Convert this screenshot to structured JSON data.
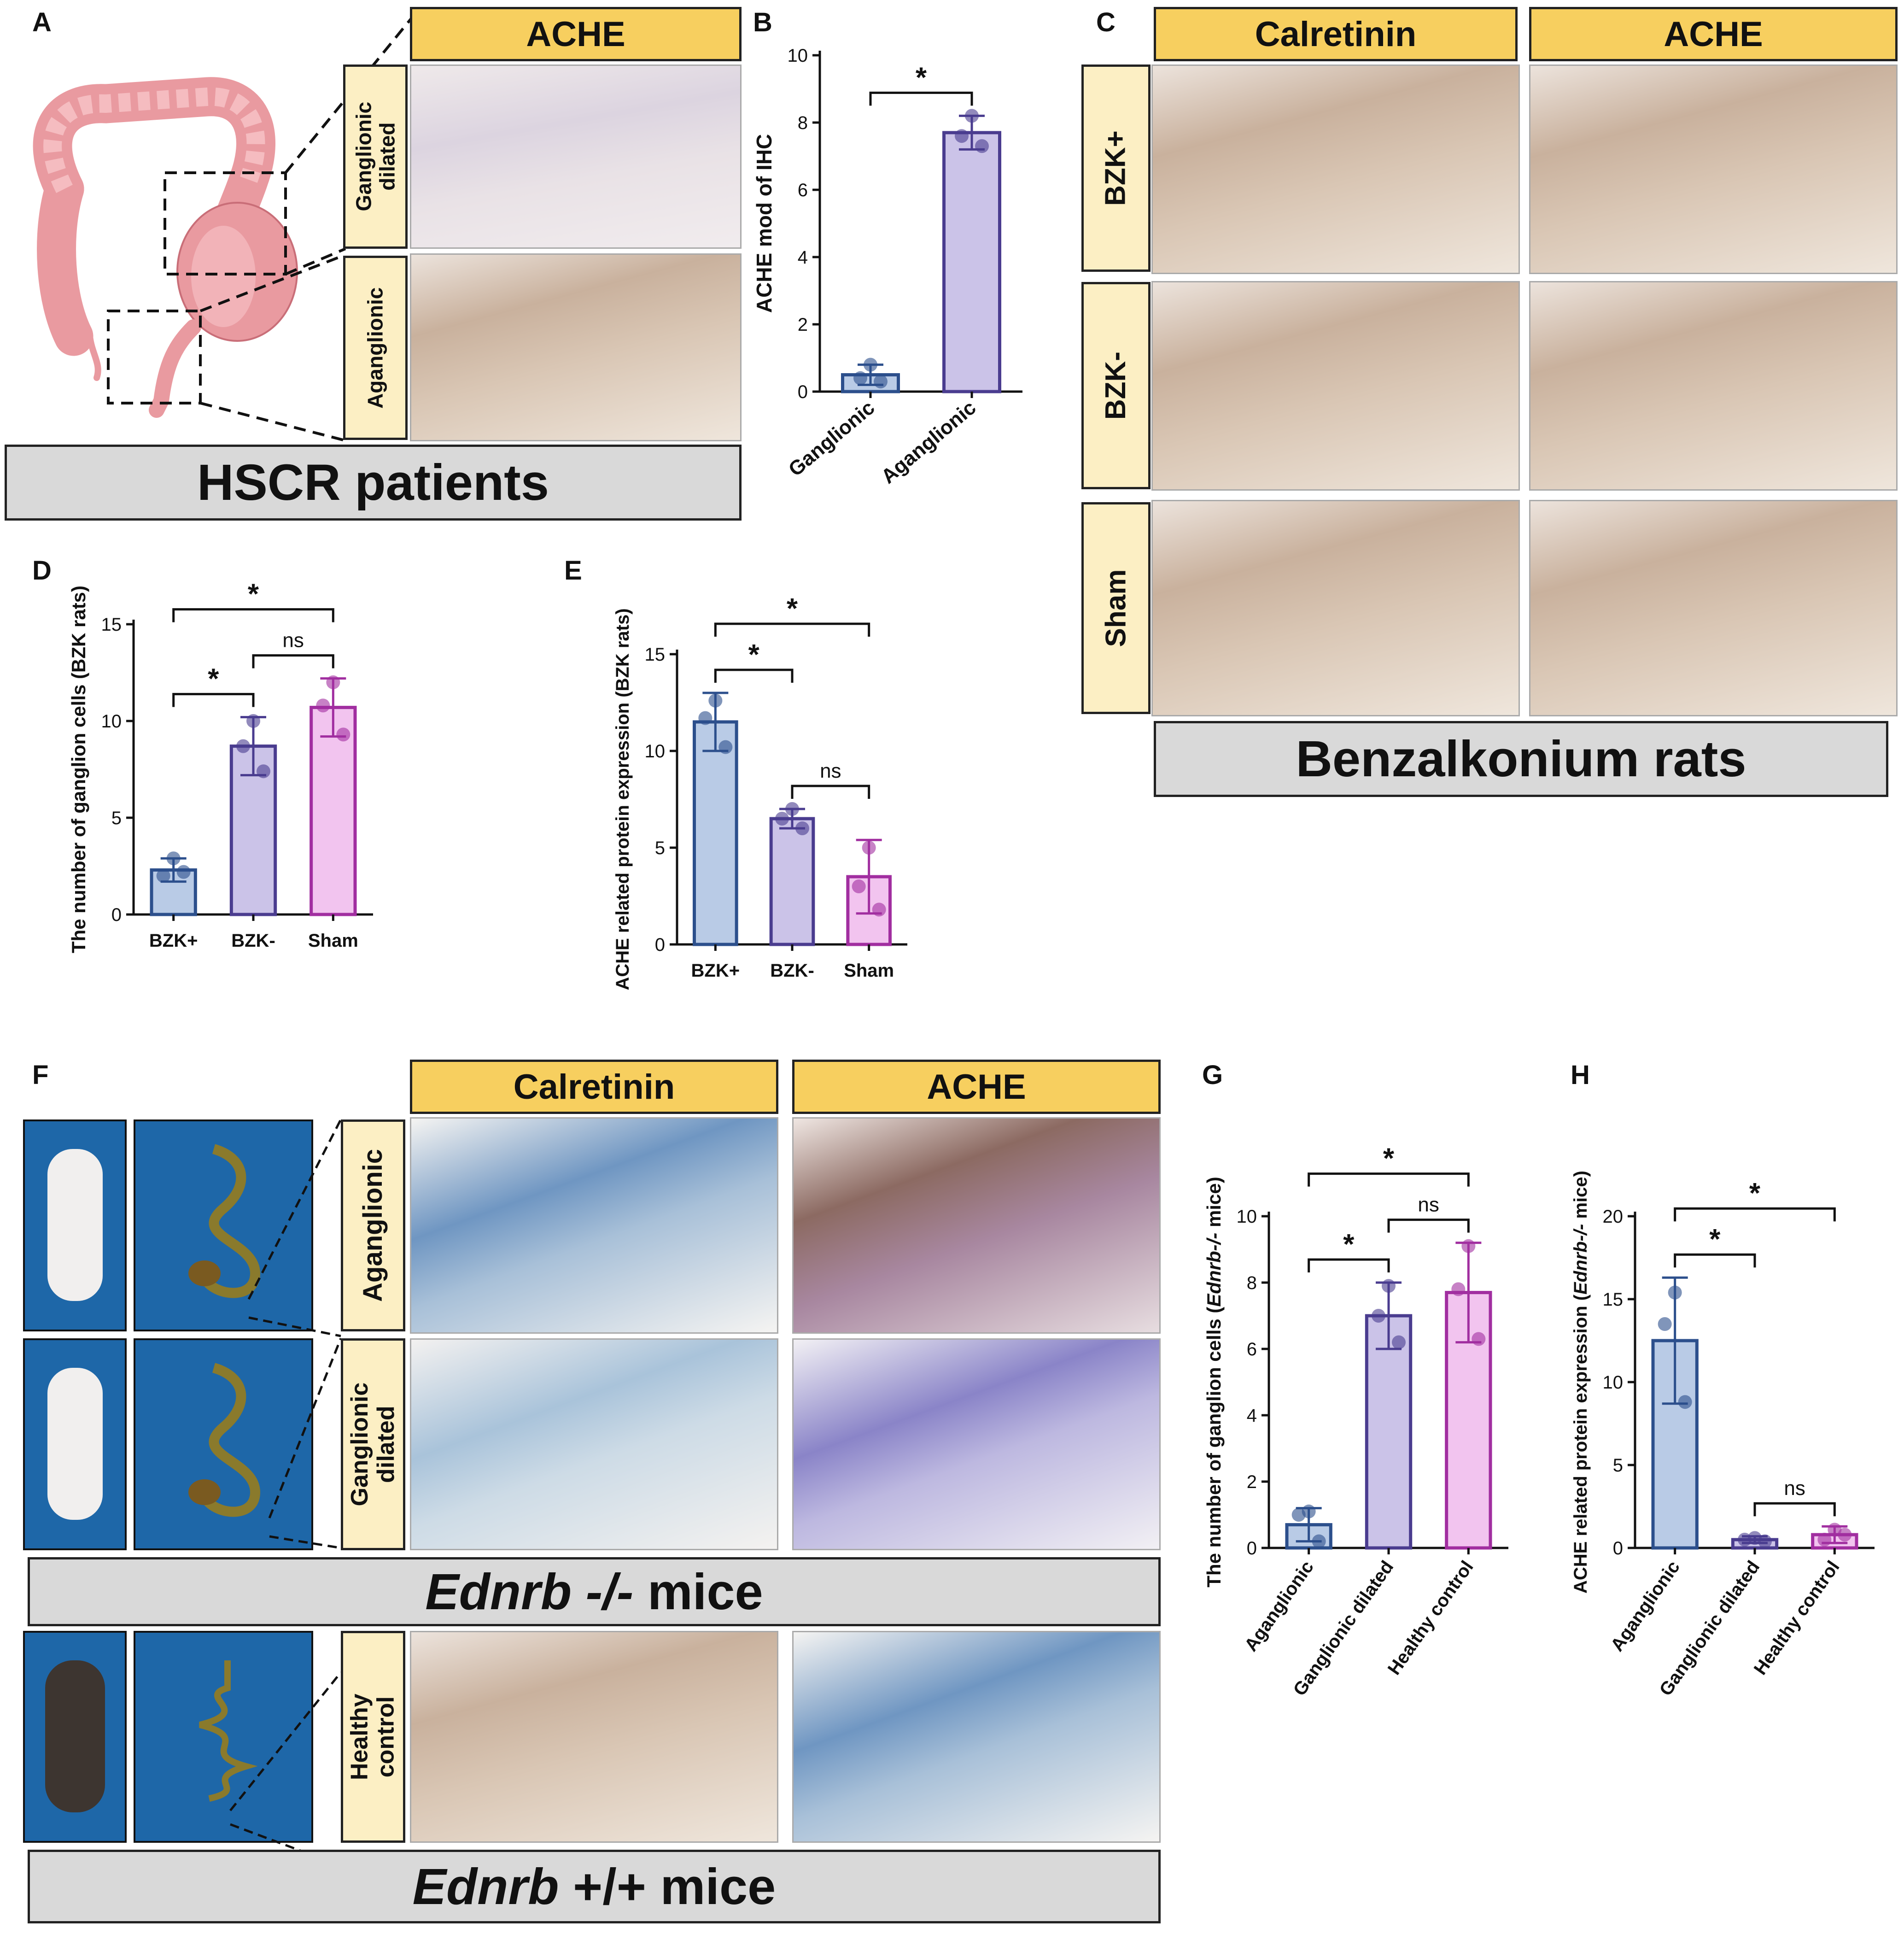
{
  "panels": {
    "A": {
      "letter": "A",
      "header": "ACHE",
      "row_labels": [
        "Ganglionic\ndilated",
        "Aganglionic"
      ],
      "footer": "HSCR patients"
    },
    "B": {
      "letter": "B"
    },
    "C": {
      "letter": "C",
      "headers": [
        "Calretinin",
        "ACHE"
      ],
      "row_labels": [
        "BZK+",
        "BZK-",
        "Sham"
      ],
      "footer": "Benzalkonium rats"
    },
    "D": {
      "letter": "D"
    },
    "E": {
      "letter": "E"
    },
    "F": {
      "letter": "F",
      "headers": [
        "Calretinin",
        "ACHE"
      ],
      "row_labels": [
        "Aganglionic",
        "Ganglionic\ndilated",
        "Healthy\ncontrol"
      ],
      "band1_italic": "Ednrb -/-",
      "band1_rest": " mice",
      "band2_italic": "Ednrb",
      "band2_rest": " +/+ mice"
    },
    "G": {
      "letter": "G"
    },
    "H": {
      "letter": "H"
    }
  },
  "colors": {
    "blue_fill": "#b9cbe6",
    "blue_edge": "#2c4f8c",
    "lav_fill": "#cbc3e8",
    "lav_edge": "#4a3c8f",
    "pink_fill": "#f2c4ef",
    "pink_edge": "#a12ea0",
    "header_yellow": "#f7cf5f",
    "label_cream": "#fcefc4",
    "gray_band": "#d9d9d9"
  },
  "chart_data": [
    {
      "id": "B",
      "type": "bar",
      "categories": [
        "Ganglionic",
        "Aganglionic"
      ],
      "values": [
        0.5,
        7.7
      ],
      "errors": [
        0.3,
        0.5
      ],
      "points": [
        [
          0.8,
          0.4,
          0.3
        ],
        [
          8.2,
          7.6,
          7.3
        ]
      ],
      "ylabel": "ACHE mod of IHC",
      "ylim": [
        0,
        10
      ],
      "yticks": [
        0,
        2,
        4,
        6,
        8,
        10
      ],
      "sig": [
        {
          "from": 0,
          "to": 1,
          "label": "*"
        }
      ]
    },
    {
      "id": "D",
      "type": "bar",
      "categories": [
        "BZK+",
        "BZK-",
        "Sham"
      ],
      "values": [
        2.3,
        8.7,
        10.7
      ],
      "errors": [
        0.6,
        1.5,
        1.5
      ],
      "points": [
        [
          2.9,
          2.0,
          2.2
        ],
        [
          10.0,
          8.7,
          7.4
        ],
        [
          12.0,
          10.8,
          9.3
        ]
      ],
      "ylabel": "The number of ganglion cells (BZK rats)",
      "ylim": [
        0,
        15
      ],
      "yticks": [
        0,
        5,
        10,
        15
      ],
      "sig": [
        {
          "from": 0,
          "to": 1,
          "label": "*"
        },
        {
          "from": 1,
          "to": 2,
          "label": "ns"
        },
        {
          "from": 0,
          "to": 2,
          "label": "*"
        }
      ]
    },
    {
      "id": "E",
      "type": "bar",
      "categories": [
        "BZK+",
        "BZK-",
        "Sham"
      ],
      "values": [
        11.5,
        6.5,
        3.5
      ],
      "errors": [
        1.5,
        0.5,
        1.9
      ],
      "points": [
        [
          12.6,
          11.7,
          10.2
        ],
        [
          7.0,
          6.5,
          6.0
        ],
        [
          5.0,
          3.0,
          1.8
        ]
      ],
      "ylabel": "ACHE related protein expression (BZK rats)",
      "ylim": [
        0,
        15
      ],
      "yticks": [
        0,
        5,
        10,
        15
      ],
      "sig": [
        {
          "from": 0,
          "to": 1,
          "label": "*"
        },
        {
          "from": 1,
          "to": 2,
          "label": "ns"
        },
        {
          "from": 0,
          "to": 2,
          "label": "*"
        }
      ]
    },
    {
      "id": "G",
      "type": "bar",
      "categories": [
        "Aganglionic",
        "Ganglionic dilated",
        "Healthy control"
      ],
      "values": [
        0.7,
        7.0,
        7.7
      ],
      "errors": [
        0.5,
        1.0,
        1.5
      ],
      "points": [
        [
          1.1,
          1.0,
          0.2
        ],
        [
          7.9,
          7.0,
          6.2
        ],
        [
          9.1,
          7.8,
          6.3
        ]
      ],
      "ylabel_pre": "The number of ganglion cells (",
      "ylabel_it": "Ednrb-/-",
      "ylabel_post": " mice)",
      "ylim": [
        0,
        10
      ],
      "yticks": [
        0,
        2,
        4,
        6,
        8,
        10
      ],
      "sig": [
        {
          "from": 0,
          "to": 1,
          "label": "*"
        },
        {
          "from": 1,
          "to": 2,
          "label": "ns"
        },
        {
          "from": 0,
          "to": 2,
          "label": "*"
        }
      ]
    },
    {
      "id": "H",
      "type": "bar",
      "categories": [
        "Aganglionic",
        "Ganglionic dilated",
        "Healthy control"
      ],
      "values": [
        12.5,
        0.5,
        0.8
      ],
      "errors": [
        3.8,
        0.2,
        0.5
      ],
      "points": [
        [
          15.4,
          13.5,
          8.8
        ],
        [
          0.6,
          0.5,
          0.4
        ],
        [
          1.1,
          0.5,
          0.8
        ]
      ],
      "ylabel_pre": "ACHE related protein expression (",
      "ylabel_it": "Ednrb-/-",
      "ylabel_post": " mice)",
      "ylim": [
        0,
        20
      ],
      "yticks": [
        0,
        5,
        10,
        15,
        20
      ],
      "sig": [
        {
          "from": 0,
          "to": 1,
          "label": "*"
        },
        {
          "from": 1,
          "to": 2,
          "label": "ns"
        },
        {
          "from": 0,
          "to": 2,
          "label": "*"
        }
      ]
    }
  ]
}
